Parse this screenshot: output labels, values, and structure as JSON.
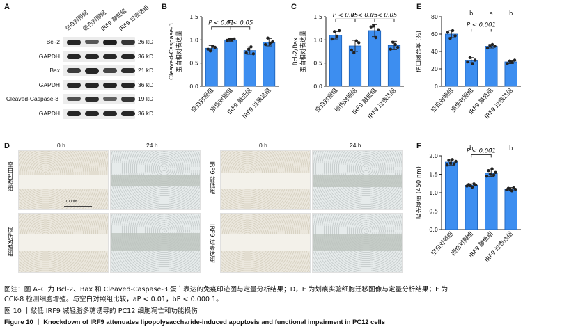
{
  "panels": {
    "A": "A",
    "B": "B",
    "C": "C",
    "D": "D",
    "E": "E",
    "F": "F"
  },
  "western_blot": {
    "group_headers": [
      "空白对照组",
      "损伤对照组",
      "IRF9 敲低组",
      "IRF9 过表达组"
    ],
    "rows": [
      {
        "protein": "Bcl-2",
        "kda": "26 kD",
        "intensity": [
          0.9,
          0.55,
          0.95,
          0.8
        ]
      },
      {
        "protein": "GAPDH",
        "kda": "36 kD",
        "intensity": [
          0.9,
          0.9,
          0.9,
          0.9
        ]
      },
      {
        "protein": "Bax",
        "kda": "21 kD",
        "intensity": [
          0.75,
          0.9,
          0.7,
          0.85
        ]
      },
      {
        "protein": "GAPDH",
        "kda": "36 kD",
        "intensity": [
          0.9,
          0.9,
          0.9,
          0.9
        ]
      },
      {
        "protein": "Cleaved-Caspase-3",
        "kda": "19 kD",
        "intensity": [
          0.6,
          0.85,
          0.5,
          0.8
        ]
      },
      {
        "protein": "GAPDH",
        "kda": "36 kD",
        "intensity": [
          0.9,
          0.9,
          0.9,
          0.9
        ]
      }
    ]
  },
  "scratch_assay": {
    "time_labels": [
      "0 h",
      "24 h",
      "0 h",
      "24 h"
    ],
    "row_labels_left": [
      "空白对照组",
      "损伤对照组"
    ],
    "row_labels_right": [
      "IRF9 敲低组",
      "IRF9 过表达组"
    ],
    "scale_bar": "100um"
  },
  "chart_data": [
    {
      "panel": "B",
      "type": "bar",
      "categories": [
        "空白对照组",
        "损伤对照组",
        "IRF9 敲低组",
        "IRF9 过表达组"
      ],
      "values": [
        0.82,
        1.0,
        0.77,
        0.95
      ],
      "errors": [
        0.06,
        0.03,
        0.08,
        0.08
      ],
      "points": [
        [
          0.8,
          0.76,
          0.86,
          0.84
        ],
        [
          0.99,
          1.01,
          1.0,
          1.02
        ],
        [
          0.72,
          0.8,
          0.85,
          0.7
        ],
        [
          0.9,
          1.04,
          0.93,
          0.96
        ]
      ],
      "ylabel": "蛋白相对表达量",
      "ylabel2": "Cleaved-Caspase-3",
      "yticks": [
        "0.0",
        "0.5",
        "1.0",
        "1.5"
      ],
      "ylim": [
        0,
        1.5
      ],
      "annotations": [
        {
          "text": "P < 0.01",
          "from": 0,
          "to": 1,
          "level": 1.28
        },
        {
          "text": "P < 0.05",
          "from": 1,
          "to": 2,
          "level": 1.28
        }
      ]
    },
    {
      "panel": "C",
      "type": "bar",
      "categories": [
        "空白对照组",
        "损伤对照组",
        "IRF9 敲低组",
        "IRF9 过表达组"
      ],
      "values": [
        1.1,
        0.87,
        1.2,
        0.88
      ],
      "errors": [
        0.08,
        0.12,
        0.13,
        0.09
      ],
      "points": [
        [
          1.02,
          1.18,
          1.08,
          1.2
        ],
        [
          0.78,
          0.72,
          0.98,
          0.94
        ],
        [
          1.28,
          1.3,
          1.05,
          1.22
        ],
        [
          0.8,
          0.95,
          0.9,
          0.84
        ]
      ],
      "ylabel": "蛋白相对表达量",
      "ylabel2": "Bcl-2/Bax",
      "yticks": [
        "0.0",
        "0.5",
        "1.0",
        "1.5"
      ],
      "ylim": [
        0,
        1.5
      ],
      "annotations": [
        {
          "text": "P < 0.05",
          "from": 0,
          "to": 1,
          "level": 1.45
        },
        {
          "text": "P < 0.05",
          "from": 1,
          "to": 2,
          "level": 1.45
        },
        {
          "text": "P < 0.05",
          "from": 2,
          "to": 3,
          "level": 1.45
        }
      ]
    },
    {
      "panel": "E",
      "type": "bar",
      "categories": [
        "空白对照组",
        "损伤对照组",
        "IRF9 敲低组",
        "IRF9 过表达组"
      ],
      "values": [
        60,
        30,
        46,
        28
      ],
      "errors": [
        4,
        3,
        2,
        2
      ],
      "points": [
        [
          62,
          55,
          64,
          58
        ],
        [
          28,
          33,
          26,
          30
        ],
        [
          44,
          47,
          48,
          46
        ],
        [
          26,
          29,
          28,
          30
        ]
      ],
      "ylabel": "伤口闭合率 (%)",
      "yticks": [
        "0",
        "20",
        "40",
        "60",
        "80"
      ],
      "ylim": [
        0,
        80
      ],
      "letters": [
        "",
        "b",
        "a",
        "b"
      ],
      "annotations": [
        {
          "text": "P < 0.001",
          "from": 1,
          "to": 2,
          "level": 66
        }
      ]
    },
    {
      "panel": "F",
      "type": "bar",
      "categories": [
        "空白对照组",
        "损伤对照组",
        "IRF9 敲低组",
        "IRF9 过表达组"
      ],
      "values": [
        1.83,
        1.2,
        1.53,
        1.1
      ],
      "errors": [
        0.08,
        0.04,
        0.09,
        0.04
      ],
      "points": [
        [
          1.75,
          1.88,
          1.8,
          1.9,
          1.78,
          1.85
        ],
        [
          1.18,
          1.22,
          1.2,
          1.15,
          1.24,
          1.21
        ],
        [
          1.45,
          1.6,
          1.5,
          1.65,
          1.48,
          1.55
        ],
        [
          1.08,
          1.12,
          1.1,
          1.05,
          1.13,
          1.09
        ]
      ],
      "ylabel": "吸光度值 (450 nm)",
      "yticks": [
        "0.0",
        "0.5",
        "1.0",
        "1.5",
        "2.0"
      ],
      "ylim": [
        0,
        2.0
      ],
      "letters": [
        "",
        "b",
        "a",
        "b"
      ],
      "annotations": [
        {
          "text": "P < 0.001",
          "from": 1,
          "to": 2,
          "level": 2.03
        }
      ]
    }
  ],
  "caption": {
    "note_line1": "图注：图 A–C 为 Bcl-2、Bax 和 Cleaved-Caspase-3 蛋白表达的免疫印迹图与定量分析结果；D，E 为划痕实验细胞迁移图像与定量分析结果；F 为",
    "note_line2": "CCK-8 检测细胞增殖。与空白对照组比较，aP < 0.01，bP < 0.000 1。",
    "title_cn": "图 10  丨敲低 IRF9 减轻脂多糖诱导的 PC12 细胞凋亡和功能损伤",
    "title_en": "Figure 10  丨  Knockdown of IRF9 attenuates lipopolysaccharide-induced apoptosis and functional impairment in PC12 cells"
  },
  "colors": {
    "bar": "#3d8ef0",
    "bar_edge": "#1b5fb5",
    "point": "#222222",
    "text": "#111111"
  }
}
